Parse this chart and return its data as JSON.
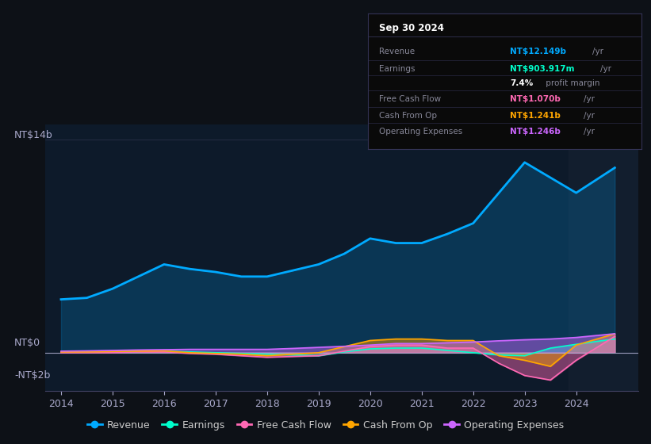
{
  "background_color": "#0d1117",
  "plot_bg_color": "#0d1a2a",
  "ylabel_top": "NT$14b",
  "ylabel_zero": "NT$0",
  "ylabel_neg": "-NT$2b",
  "x_ticks": [
    "2014",
    "2015",
    "2016",
    "2017",
    "2018",
    "2019",
    "2020",
    "2021",
    "2022",
    "2023",
    "2024"
  ],
  "legend": [
    {
      "label": "Revenue",
      "color": "#00aaff"
    },
    {
      "label": "Earnings",
      "color": "#00ffcc"
    },
    {
      "label": "Free Cash Flow",
      "color": "#ff69b4"
    },
    {
      "label": "Cash From Op",
      "color": "#ffa500"
    },
    {
      "label": "Operating Expenses",
      "color": "#cc66ff"
    }
  ],
  "x_years": [
    2014,
    2014.5,
    2015,
    2015.5,
    2016,
    2016.5,
    2017,
    2017.5,
    2018,
    2018.5,
    2019,
    2019.5,
    2020,
    2020.5,
    2021,
    2021.5,
    2022,
    2022.5,
    2023,
    2023.5,
    2024,
    2024.75
  ],
  "revenue_y": [
    3.5,
    3.6,
    4.2,
    5.0,
    5.8,
    5.5,
    5.3,
    5.0,
    5.0,
    5.4,
    5.8,
    6.5,
    7.5,
    7.2,
    7.2,
    7.8,
    8.5,
    10.5,
    12.5,
    11.5,
    10.5,
    12.149
  ],
  "earnings_y": [
    0.05,
    0.05,
    0.05,
    0.08,
    0.1,
    0.05,
    0.0,
    -0.05,
    -0.1,
    -0.15,
    -0.2,
    0.05,
    0.25,
    0.3,
    0.3,
    0.15,
    0.0,
    -0.15,
    -0.2,
    0.3,
    0.55,
    0.904
  ],
  "fcf_y": [
    0.0,
    0.0,
    0.0,
    0.05,
    0.05,
    -0.05,
    -0.1,
    -0.2,
    -0.3,
    -0.25,
    -0.2,
    0.1,
    0.4,
    0.5,
    0.5,
    0.3,
    0.3,
    -0.7,
    -1.5,
    -1.8,
    -0.5,
    1.07
  ],
  "cashop_y": [
    0.05,
    0.05,
    0.08,
    0.1,
    0.12,
    0.0,
    -0.05,
    -0.1,
    -0.2,
    -0.1,
    0.0,
    0.4,
    0.8,
    0.9,
    0.9,
    0.8,
    0.8,
    -0.2,
    -0.5,
    -0.9,
    0.5,
    1.241
  ],
  "opex_y": [
    0.1,
    0.12,
    0.15,
    0.18,
    0.2,
    0.22,
    0.22,
    0.22,
    0.22,
    0.28,
    0.35,
    0.42,
    0.5,
    0.6,
    0.6,
    0.65,
    0.7,
    0.78,
    0.85,
    0.9,
    1.0,
    1.246
  ],
  "box_date": "Sep 30 2024",
  "box_rows": [
    {
      "label": "Revenue",
      "value": "NT$12.149b",
      "unit": "/yr",
      "value_color": "#00aaff"
    },
    {
      "label": "Earnings",
      "value": "NT$903.917m",
      "unit": "/yr",
      "value_color": "#00ffcc"
    },
    {
      "label": "",
      "value": "7.4%",
      "unit": " profit margin",
      "value_color": "#ffffff"
    },
    {
      "label": "Free Cash Flow",
      "value": "NT$1.070b",
      "unit": "/yr",
      "value_color": "#ff69b4"
    },
    {
      "label": "Cash From Op",
      "value": "NT$1.241b",
      "unit": "/yr",
      "value_color": "#ffa500"
    },
    {
      "label": "Operating Expenses",
      "value": "NT$1.246b",
      "unit": "/yr",
      "value_color": "#cc66ff"
    }
  ]
}
